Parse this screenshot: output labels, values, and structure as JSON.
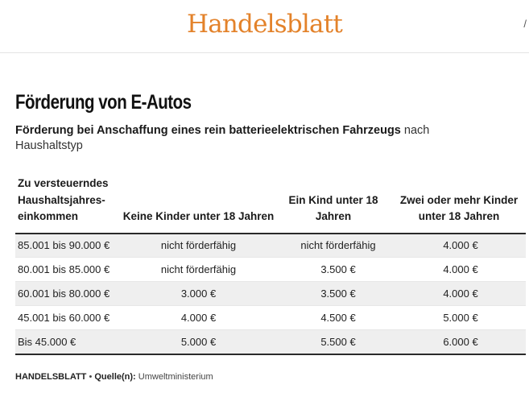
{
  "header": {
    "brand": "Handelsblatt",
    "edge_glyph": "/"
  },
  "chart": {
    "title": "Förderung von E-Autos",
    "subtitle_bold": "Förderung bei Anschaffung eines rein batterieelektrischen Fahrzeugs",
    "subtitle_rest": " nach Haushaltstyp"
  },
  "table": {
    "columns": [
      "Zu versteuerndes Haushaltsjahres-einkommen",
      "Keine Kinder unter 18 Jahren",
      "Ein Kind unter 18 Jahren",
      "Zwei oder mehr Kinder unter 18 Jahren"
    ],
    "rows": [
      [
        "85.001 bis 90.000 €",
        "nicht förderfähig",
        "nicht förderfähig",
        "4.000 €"
      ],
      [
        "80.001 bis 85.000 €",
        "nicht förderfähig",
        "3.500 €",
        "4.000 €"
      ],
      [
        "60.001 bis 80.000 €",
        "3.000 €",
        "3.500 €",
        "4.000 €"
      ],
      [
        "45.001 bis 60.000 €",
        "4.000 €",
        "4.500 €",
        "5.000 €"
      ],
      [
        "Bis 45.000 €",
        "5.000 €",
        "5.500 €",
        "6.000 €"
      ]
    ]
  },
  "footer": {
    "publisher": "HANDELSBLATT",
    "separator": " • ",
    "source_label": "Quelle(n):",
    "source": " Umweltministerium"
  }
}
